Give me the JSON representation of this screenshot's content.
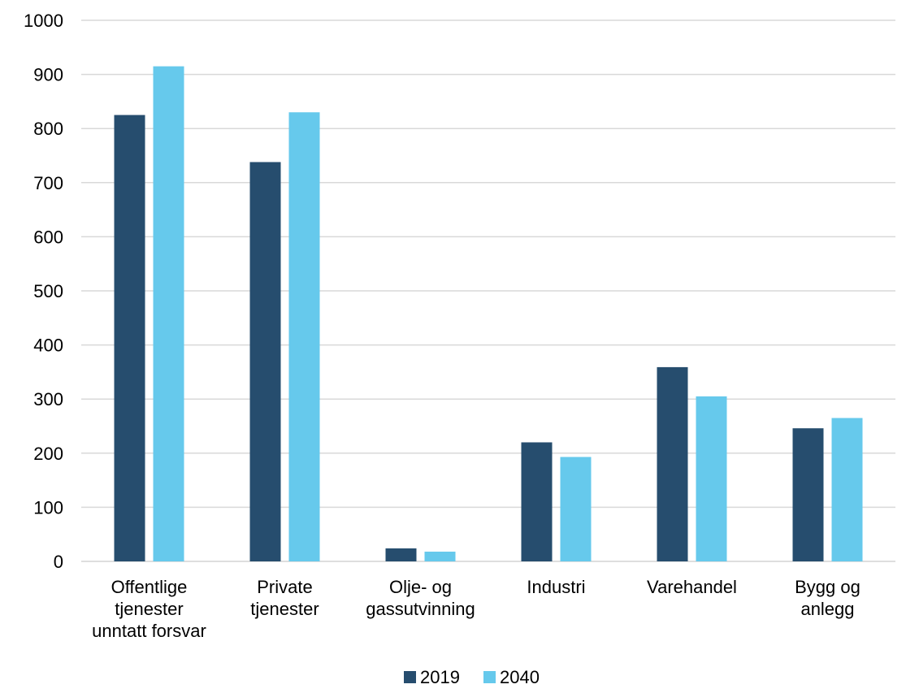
{
  "chart_data": {
    "type": "bar",
    "title": "",
    "xlabel": "",
    "ylabel": "",
    "categories": [
      [
        "Offentlige",
        "tjenester",
        "unntatt forsvar"
      ],
      [
        "Private",
        "tjenester"
      ],
      [
        "Olje- og",
        "gassutvinning"
      ],
      [
        "Industri"
      ],
      [
        "Varehandel"
      ],
      [
        "Bygg og",
        "anlegg"
      ]
    ],
    "series": [
      {
        "name": "2019",
        "color": "#264d6e",
        "values": [
          825,
          738,
          24,
          220,
          359,
          246
        ]
      },
      {
        "name": "2040",
        "color": "#66c9ec",
        "values": [
          915,
          830,
          18,
          193,
          305,
          265
        ]
      }
    ],
    "ylim": [
      0,
      1000
    ],
    "yticks": [
      0,
      100,
      200,
      300,
      400,
      500,
      600,
      700,
      800,
      900,
      1000
    ],
    "grid": true,
    "gridColor": "#d9d9d9",
    "legend": "bottom-center"
  }
}
